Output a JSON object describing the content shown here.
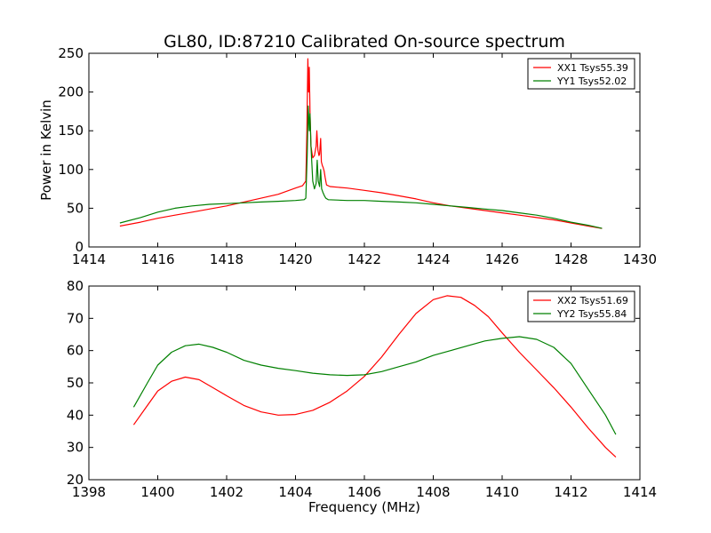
{
  "figure": {
    "title": "GL80, ID:87210 Calibrated On-source spectrum"
  },
  "chart_data": [
    {
      "type": "line",
      "title": "GL80, ID:87210 Calibrated On-source spectrum",
      "xlabel": "",
      "ylabel": "Power in Kelvin",
      "xlim": [
        1414,
        1430
      ],
      "ylim": [
        0,
        250
      ],
      "xticks": [
        "1414",
        "1416",
        "1418",
        "1420",
        "1422",
        "1424",
        "1426",
        "1428",
        "1430"
      ],
      "yticks": [
        "0",
        "50",
        "100",
        "150",
        "200",
        "250"
      ],
      "grid": false,
      "legend_position": "top-right",
      "series": [
        {
          "name": "XX1 Tsys55.39",
          "color": "#ff0000",
          "x": [
            1414.9,
            1415.5,
            1416.0,
            1416.5,
            1417.0,
            1417.5,
            1418.0,
            1418.5,
            1419.0,
            1419.5,
            1420.0,
            1420.2,
            1420.3,
            1420.33,
            1420.36,
            1420.38,
            1420.4,
            1420.42,
            1420.45,
            1420.5,
            1420.55,
            1420.6,
            1420.62,
            1420.65,
            1420.68,
            1420.7,
            1420.73,
            1420.75,
            1420.78,
            1420.8,
            1420.83,
            1420.86,
            1420.9,
            1421.0,
            1421.5,
            1422.0,
            1422.5,
            1423.0,
            1423.5,
            1424.0,
            1424.5,
            1425.0,
            1425.5,
            1426.0,
            1426.5,
            1427.0,
            1427.5,
            1428.0,
            1428.5,
            1428.9
          ],
          "y": [
            27,
            32,
            37,
            41,
            45,
            49,
            53,
            58,
            63,
            68,
            76,
            79,
            85,
            150,
            243,
            200,
            232,
            175,
            130,
            115,
            118,
            130,
            150,
            125,
            118,
            120,
            140,
            110,
            105,
            103,
            98,
            90,
            80,
            78,
            76,
            73,
            70,
            66,
            62,
            57,
            53,
            50,
            47,
            44,
            41,
            38,
            35,
            31,
            27,
            24
          ]
        },
        {
          "name": "YY1 Tsys52.02",
          "color": "#008000",
          "x": [
            1414.9,
            1415.5,
            1416.0,
            1416.5,
            1417.0,
            1417.5,
            1418.0,
            1418.5,
            1419.0,
            1419.5,
            1420.0,
            1420.25,
            1420.3,
            1420.34,
            1420.37,
            1420.4,
            1420.42,
            1420.45,
            1420.5,
            1420.55,
            1420.6,
            1420.63,
            1420.66,
            1420.7,
            1420.73,
            1420.76,
            1420.8,
            1420.84,
            1420.88,
            1420.95,
            1421.5,
            1422.0,
            1422.5,
            1423.0,
            1423.5,
            1424.0,
            1424.5,
            1425.0,
            1425.5,
            1426.0,
            1426.5,
            1427.0,
            1427.5,
            1428.0,
            1428.5,
            1428.9
          ],
          "y": [
            31,
            38,
            45,
            50,
            53,
            55,
            56,
            57,
            58,
            59,
            60,
            61,
            63,
            120,
            182,
            150,
            172,
            130,
            85,
            75,
            82,
            112,
            85,
            78,
            100,
            75,
            70,
            66,
            63,
            61,
            60,
            60,
            59,
            58,
            57,
            55,
            53,
            51,
            49,
            47,
            44,
            41,
            37,
            32,
            28,
            24
          ]
        }
      ]
    },
    {
      "type": "line",
      "title": "",
      "xlabel": "Frequency (MHz)",
      "ylabel": "",
      "xlim": [
        1398,
        1414
      ],
      "ylim": [
        20,
        80
      ],
      "xticks": [
        "1398",
        "1400",
        "1402",
        "1404",
        "1406",
        "1408",
        "1410",
        "1412",
        "1414"
      ],
      "yticks": [
        "20",
        "30",
        "40",
        "50",
        "60",
        "70",
        "80"
      ],
      "grid": false,
      "legend_position": "top-right",
      "series": [
        {
          "name": "XX2 Tsys51.69",
          "color": "#ff0000",
          "x": [
            1399.3,
            1399.7,
            1400.0,
            1400.4,
            1400.8,
            1401.2,
            1401.6,
            1402.0,
            1402.5,
            1403.0,
            1403.5,
            1404.0,
            1404.5,
            1405.0,
            1405.5,
            1406.0,
            1406.5,
            1407.0,
            1407.5,
            1408.0,
            1408.4,
            1408.8,
            1409.2,
            1409.6,
            1410.0,
            1410.5,
            1411.0,
            1411.5,
            1412.0,
            1412.5,
            1413.0,
            1413.3
          ],
          "y": [
            37,
            43,
            47.5,
            50.5,
            51.8,
            51,
            48.5,
            46,
            43,
            41,
            40,
            40.2,
            41.5,
            44,
            47.5,
            52,
            58,
            65,
            71.5,
            75.8,
            77,
            76.5,
            74,
            70.5,
            65.5,
            59.5,
            54,
            48.5,
            42.5,
            36,
            30,
            27
          ]
        },
        {
          "name": "YY2 Tsys55.84",
          "color": "#008000",
          "x": [
            1399.3,
            1399.7,
            1400.0,
            1400.4,
            1400.8,
            1401.2,
            1401.6,
            1402.0,
            1402.5,
            1403.0,
            1403.5,
            1404.0,
            1404.5,
            1405.0,
            1405.5,
            1406.0,
            1406.5,
            1407.0,
            1407.5,
            1408.0,
            1408.5,
            1409.0,
            1409.5,
            1410.0,
            1410.5,
            1411.0,
            1411.5,
            1412.0,
            1412.5,
            1413.0,
            1413.3
          ],
          "y": [
            42.5,
            50,
            55.5,
            59.5,
            61.5,
            62,
            61,
            59.5,
            57,
            55.5,
            54.5,
            53.8,
            53,
            52.5,
            52.3,
            52.5,
            53.5,
            55,
            56.5,
            58.5,
            60,
            61.5,
            63,
            63.8,
            64.3,
            63.5,
            61,
            56,
            48,
            40,
            34
          ]
        }
      ]
    }
  ]
}
